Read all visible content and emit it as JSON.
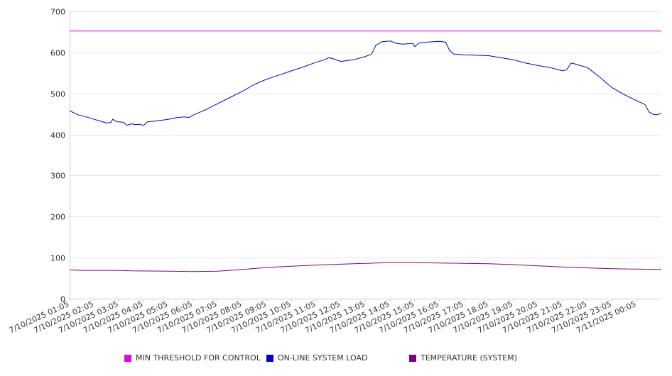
{
  "chart_data": {
    "type": "line",
    "title": "",
    "xlabel": "",
    "ylabel": "",
    "ylim": [
      0,
      700
    ],
    "yticks": [
      0,
      100,
      200,
      300,
      400,
      500,
      600,
      700
    ],
    "grid": true,
    "legend_position": "bottom",
    "x_tick_labels": [
      "7/10/2025 01:05",
      "7/10/2025 02:05",
      "7/10/2025 03:05",
      "7/10/2025 04:05",
      "7/10/2025 05:05",
      "7/10/2025 06:05",
      "7/10/2025 07:05",
      "7/10/2025 08:05",
      "7/10/2025 09:05",
      "7/10/2025 10:05",
      "7/10/2025 11:05",
      "7/10/2025 12:05",
      "7/10/2025 13:05",
      "7/10/2025 14:05",
      "7/10/2025 15:05",
      "7/10/2025 16:05",
      "7/10/2025 17:05",
      "7/10/2025 18:05",
      "7/10/2025 19:05",
      "7/10/2025 20:05",
      "7/10/2025 21:05",
      "7/10/2025 22:05",
      "7/10/2025 23:05",
      "7/11/2025 00:05"
    ],
    "xlim": [
      "7/10/2025 01:05",
      "7/11/2025 01:05"
    ],
    "series": [
      {
        "name": "MIN THRESHOLD FOR CONTROL",
        "color": "#e600e6",
        "points": [
          [
            "7/10/2025 01:05",
            652
          ],
          [
            "7/11/2025 01:05",
            652
          ]
        ]
      },
      {
        "name": "ON-LINE SYSTEM LOAD",
        "color": "#0000cc",
        "points": [
          [
            "7/10/2025 01:05",
            458
          ],
          [
            "7/10/2025 01:15",
            453
          ],
          [
            "7/10/2025 01:25",
            448
          ],
          [
            "7/10/2025 01:45",
            443
          ],
          [
            "7/10/2025 02:05",
            437
          ],
          [
            "7/10/2025 02:25",
            431
          ],
          [
            "7/10/2025 02:35",
            428
          ],
          [
            "7/10/2025 02:45",
            429
          ],
          [
            "7/10/2025 02:50",
            437
          ],
          [
            "7/10/2025 03:00",
            431
          ],
          [
            "7/10/2025 03:15",
            430
          ],
          [
            "7/10/2025 03:25",
            422
          ],
          [
            "7/10/2025 03:35",
            426
          ],
          [
            "7/10/2025 03:45",
            424
          ],
          [
            "7/10/2025 03:55",
            425
          ],
          [
            "7/10/2025 04:05",
            422
          ],
          [
            "7/10/2025 04:15",
            431
          ],
          [
            "7/10/2025 04:35",
            433
          ],
          [
            "7/10/2025 05:05",
            437
          ],
          [
            "7/10/2025 05:25",
            441
          ],
          [
            "7/10/2025 05:45",
            443
          ],
          [
            "7/10/2025 05:55",
            441
          ],
          [
            "7/10/2025 06:05",
            447
          ],
          [
            "7/10/2025 06:35",
            460
          ],
          [
            "7/10/2025 07:05",
            475
          ],
          [
            "7/10/2025 07:35",
            490
          ],
          [
            "7/10/2025 08:05",
            505
          ],
          [
            "7/10/2025 08:35",
            522
          ],
          [
            "7/10/2025 09:05",
            535
          ],
          [
            "7/10/2025 09:35",
            545
          ],
          [
            "7/10/2025 10:05",
            555
          ],
          [
            "7/10/2025 10:35",
            565
          ],
          [
            "7/10/2025 11:05",
            576
          ],
          [
            "7/10/2025 11:25",
            582
          ],
          [
            "7/10/2025 11:35",
            587
          ],
          [
            "7/10/2025 11:45",
            585
          ],
          [
            "7/10/2025 12:05",
            578
          ],
          [
            "7/10/2025 12:20",
            580
          ],
          [
            "7/10/2025 12:35",
            582
          ],
          [
            "7/10/2025 13:05",
            590
          ],
          [
            "7/10/2025 13:20",
            596
          ],
          [
            "7/10/2025 13:30",
            617
          ],
          [
            "7/10/2025 13:45",
            626
          ],
          [
            "7/10/2025 14:05",
            628
          ],
          [
            "7/10/2025 14:20",
            622
          ],
          [
            "7/10/2025 14:35",
            620
          ],
          [
            "7/10/2025 15:00",
            622
          ],
          [
            "7/10/2025 15:05",
            614
          ],
          [
            "7/10/2025 15:15",
            623
          ],
          [
            "7/10/2025 15:35",
            625
          ],
          [
            "7/10/2025 16:05",
            627
          ],
          [
            "7/10/2025 16:20",
            625
          ],
          [
            "7/10/2025 16:30",
            604
          ],
          [
            "7/10/2025 16:40",
            596
          ],
          [
            "7/10/2025 17:05",
            594
          ],
          [
            "7/10/2025 17:35",
            593
          ],
          [
            "7/10/2025 18:05",
            592
          ],
          [
            "7/10/2025 18:35",
            587
          ],
          [
            "7/10/2025 19:05",
            582
          ],
          [
            "7/10/2025 19:35",
            574
          ],
          [
            "7/10/2025 20:05",
            568
          ],
          [
            "7/10/2025 20:35",
            563
          ],
          [
            "7/10/2025 21:05",
            555
          ],
          [
            "7/10/2025 21:15",
            558
          ],
          [
            "7/10/2025 21:25",
            574
          ],
          [
            "7/10/2025 21:35",
            572
          ],
          [
            "7/10/2025 22:05",
            563
          ],
          [
            "7/10/2025 22:35",
            540
          ],
          [
            "7/10/2025 23:05",
            514
          ],
          [
            "7/10/2025 23:35",
            497
          ],
          [
            "7/11/2025 00:05",
            482
          ],
          [
            "7/11/2025 00:25",
            473
          ],
          [
            "7/11/2025 00:35",
            455
          ],
          [
            "7/11/2025 00:45",
            449
          ],
          [
            "7/11/2025 00:55",
            448
          ],
          [
            "7/11/2025 01:05",
            452
          ]
        ]
      },
      {
        "name": "TEMPERATURE (SYSTEM)",
        "color": "#800080",
        "points": [
          [
            "7/10/2025 01:05",
            70
          ],
          [
            "7/10/2025 01:35",
            69
          ],
          [
            "7/10/2025 03:05",
            69
          ],
          [
            "7/10/2025 03:35",
            68
          ],
          [
            "7/10/2025 05:05",
            67
          ],
          [
            "7/10/2025 06:05",
            66
          ],
          [
            "7/10/2025 07:05",
            67
          ],
          [
            "7/10/2025 08:05",
            71
          ],
          [
            "7/10/2025 09:05",
            76
          ],
          [
            "7/10/2025 10:05",
            79
          ],
          [
            "7/10/2025 11:05",
            82
          ],
          [
            "7/10/2025 12:05",
            84
          ],
          [
            "7/10/2025 13:05",
            86
          ],
          [
            "7/10/2025 14:05",
            88
          ],
          [
            "7/10/2025 15:05",
            88
          ],
          [
            "7/10/2025 16:05",
            87
          ],
          [
            "7/10/2025 17:05",
            86
          ],
          [
            "7/10/2025 18:05",
            85
          ],
          [
            "7/10/2025 19:05",
            83
          ],
          [
            "7/10/2025 20:05",
            80
          ],
          [
            "7/10/2025 21:05",
            77
          ],
          [
            "7/10/2025 22:05",
            75
          ],
          [
            "7/10/2025 23:05",
            73
          ],
          [
            "7/11/2025 00:05",
            72
          ],
          [
            "7/11/2025 01:05",
            71
          ]
        ]
      }
    ]
  }
}
